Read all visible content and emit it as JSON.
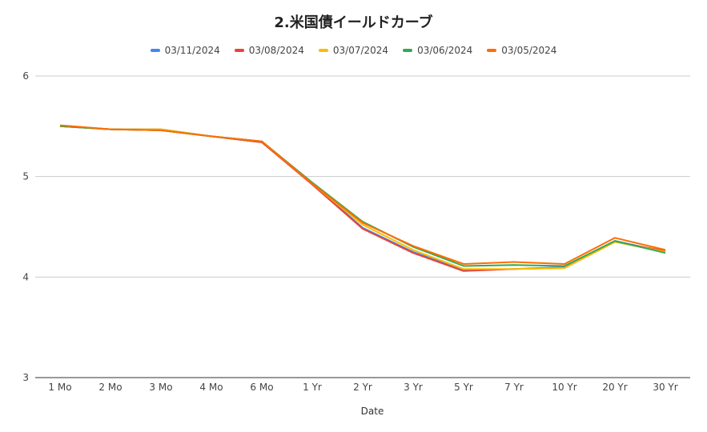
{
  "chart_data": {
    "type": "line",
    "title": "2.米国債イールドカーブ",
    "xlabel": "Date",
    "ylabel": "",
    "ylim": [
      3,
      6
    ],
    "yticks": [
      3,
      4,
      5,
      6
    ],
    "grid": true,
    "legend_position": "top",
    "categories": [
      "1 Mo",
      "2 Mo",
      "3 Mo",
      "4 Mo",
      "6 Mo",
      "1 Yr",
      "2 Yr",
      "3 Yr",
      "5 Yr",
      "7 Yr",
      "10 Yr",
      "20 Yr",
      "30 Yr"
    ],
    "series": [
      {
        "name": "03/11/2024",
        "color": "#4285f4",
        "values": [
          5.5,
          5.47,
          5.47,
          5.4,
          5.34,
          4.93,
          4.49,
          4.25,
          4.07,
          4.08,
          4.1,
          4.36,
          4.25
        ]
      },
      {
        "name": "03/08/2024",
        "color": "#ea4335",
        "values": [
          5.5,
          5.47,
          5.46,
          5.4,
          5.34,
          4.92,
          4.48,
          4.24,
          4.06,
          4.08,
          4.09,
          4.35,
          4.26
        ]
      },
      {
        "name": "03/07/2024",
        "color": "#fbbc04",
        "values": [
          5.5,
          5.47,
          5.47,
          5.4,
          5.35,
          4.93,
          4.52,
          4.27,
          4.08,
          4.08,
          4.09,
          4.35,
          4.25
        ]
      },
      {
        "name": "03/06/2024",
        "color": "#34a853",
        "values": [
          5.5,
          5.47,
          5.46,
          5.4,
          5.35,
          4.94,
          4.55,
          4.3,
          4.11,
          4.12,
          4.11,
          4.36,
          4.24
        ]
      },
      {
        "name": "03/05/2024",
        "color": "#ff6d01",
        "values": [
          5.51,
          5.47,
          5.46,
          5.4,
          5.35,
          4.93,
          4.54,
          4.31,
          4.13,
          4.15,
          4.13,
          4.39,
          4.27
        ]
      }
    ]
  }
}
